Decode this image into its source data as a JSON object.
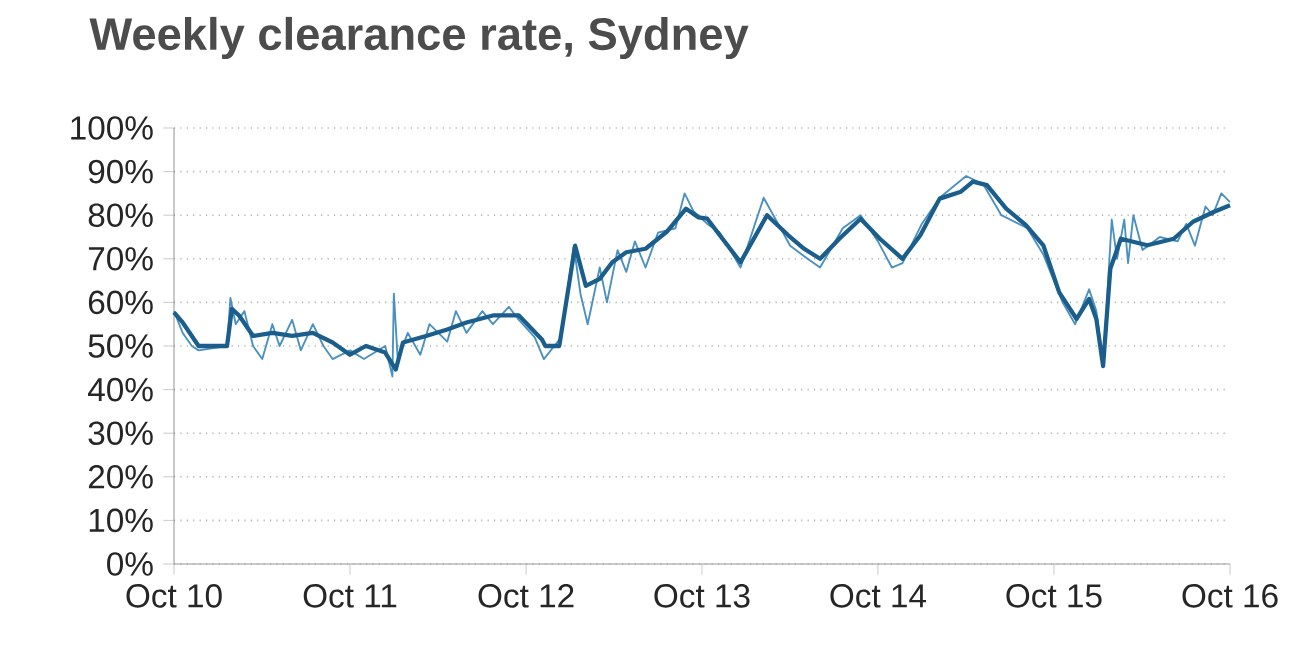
{
  "chart_data": {
    "type": "line",
    "title": "Weekly clearance rate, Sydney",
    "xlim": [
      "2010-10",
      "2016-10"
    ],
    "ylim": [
      0,
      100
    ],
    "xticks": [
      {
        "value": "2010-10",
        "label": "Oct 10"
      },
      {
        "value": "2011-10",
        "label": "Oct 11"
      },
      {
        "value": "2012-10",
        "label": "Oct 12"
      },
      {
        "value": "2013-10",
        "label": "Oct 13"
      },
      {
        "value": "2014-10",
        "label": "Oct 14"
      },
      {
        "value": "2015-10",
        "label": "Oct 15"
      },
      {
        "value": "2016-10",
        "label": "Oct 16"
      }
    ],
    "yticks": [
      {
        "value": 0,
        "label": "0%"
      },
      {
        "value": 10,
        "label": "10%"
      },
      {
        "value": 20,
        "label": "20%"
      },
      {
        "value": 30,
        "label": "30%"
      },
      {
        "value": 40,
        "label": "40%"
      },
      {
        "value": 50,
        "label": "50%"
      },
      {
        "value": 60,
        "label": "60%"
      },
      {
        "value": 70,
        "label": "70%"
      },
      {
        "value": 80,
        "label": "80%"
      },
      {
        "value": 90,
        "label": "90%"
      },
      {
        "value": 100,
        "label": "100%"
      }
    ],
    "grid": "y",
    "line_style": "solid",
    "series": [
      {
        "color": "#4a90c0",
        "x": [
          "2010-10-01",
          "2010-10-19",
          "2010-11-07",
          "2010-11-21",
          "2011-01-19",
          "2011-01-26",
          "2011-02-06",
          "2011-02-24",
          "2011-03-14",
          "2011-04-02",
          "2011-04-23",
          "2011-05-08",
          "2011-06-03",
          "2011-06-21",
          "2011-07-16",
          "2011-08-07",
          "2011-08-26",
          "2011-10-01",
          "2011-10-30",
          "2011-12-13",
          "2011-12-28",
          "2011-12-31",
          "2012-01-08",
          "2012-01-29",
          "2012-02-24",
          "2012-03-14",
          "2012-04-20",
          "2012-05-08",
          "2012-05-30",
          "2012-07-02",
          "2012-07-24",
          "2012-08-26",
          "2012-09-16",
          "2012-10-19",
          "2012-11-07",
          "2012-12-13",
          "2013-01-08",
          "2013-01-22",
          "2013-02-06",
          "2013-03-03",
          "2013-03-18",
          "2013-04-09",
          "2013-04-27",
          "2013-05-15",
          "2013-06-06",
          "2013-07-02",
          "2013-08-07",
          "2013-08-26",
          "2013-09-13",
          "2013-10-12",
          "2013-11-07",
          "2013-12-20",
          "2014-02-06",
          "2014-04-02",
          "2014-05-08",
          "2014-06-03",
          "2014-07-20",
          "2014-08-26",
          "2014-10-01",
          "2014-10-30",
          "2014-11-21",
          "2014-12-31",
          "2015-02-06",
          "2015-04-02",
          "2015-05-08",
          "2015-06-14",
          "2015-08-07",
          "2015-09-09",
          "2015-10-19",
          "2015-11-14",
          "2015-12-13",
          "2015-12-28",
          "2016-01-11",
          "2016-01-19",
          "2016-01-29",
          "2016-02-09",
          "2016-02-24",
          "2016-03-03",
          "2016-03-14",
          "2016-04-02",
          "2016-05-08",
          "2016-06-14",
          "2016-07-02",
          "2016-07-20",
          "2016-08-11",
          "2016-08-26",
          "2016-09-13",
          "2016-10-01"
        ],
        "values": [
          58,
          53,
          50,
          49,
          50,
          61,
          55,
          58,
          50,
          47,
          55,
          50,
          56,
          49,
          55,
          50,
          47,
          49,
          47,
          50,
          43,
          62,
          47,
          53,
          48,
          55,
          51,
          58,
          53,
          58,
          55,
          59,
          56,
          52,
          47,
          52,
          73,
          62,
          55,
          68,
          60,
          72,
          67,
          74,
          68,
          76,
          77,
          85,
          81,
          78,
          76,
          68,
          84,
          73,
          70,
          68,
          77,
          80,
          74,
          68,
          69,
          78,
          84,
          89,
          87,
          80,
          77,
          71,
          60,
          55,
          63,
          58,
          46,
          60,
          79,
          70,
          79,
          69,
          80,
          72,
          75,
          74,
          78,
          73,
          82,
          80,
          85,
          83
        ]
      },
      {
        "color": "#1b5e8c",
        "x": [
          "2010-10-01",
          "2010-10-19",
          "2010-11-21",
          "2011-01-19",
          "2011-01-29",
          "2011-02-13",
          "2011-03-14",
          "2011-04-23",
          "2011-06-03",
          "2011-07-16",
          "2011-08-26",
          "2011-10-01",
          "2011-11-03",
          "2011-12-13",
          "2012-01-04",
          "2012-01-19",
          "2012-03-07",
          "2012-04-20",
          "2012-05-30",
          "2012-07-24",
          "2012-09-16",
          "2012-11-03",
          "2012-11-10",
          "2012-12-09",
          "2013-01-11",
          "2013-02-02",
          "2013-03-03",
          "2013-03-29",
          "2013-04-27",
          "2013-06-06",
          "2013-07-20",
          "2013-08-29",
          "2013-09-24",
          "2013-10-12",
          "2013-11-07",
          "2013-12-20",
          "2014-02-13",
          "2014-03-29",
          "2014-05-01",
          "2014-06-03",
          "2014-07-13",
          "2014-08-26",
          "2014-10-05",
          "2014-11-21",
          "2014-12-28",
          "2015-02-06",
          "2015-03-22",
          "2015-04-16",
          "2015-05-15",
          "2015-06-24",
          "2015-08-04",
          "2015-09-09",
          "2015-10-12",
          "2015-11-17",
          "2015-12-13",
          "2015-12-28",
          "2016-01-11",
          "2016-01-26",
          "2016-02-17",
          "2016-04-12",
          "2016-06-06",
          "2016-07-16",
          "2016-08-29",
          "2016-10-01"
        ],
        "values": [
          57.7,
          55.4,
          50,
          50,
          58.5,
          57,
          52.3,
          53,
          52.3,
          53,
          50.8,
          48,
          50,
          48.5,
          44.6,
          50.8,
          52.3,
          53.8,
          55.4,
          57,
          57,
          51.5,
          50,
          50,
          73,
          63.8,
          65.4,
          69.2,
          71.5,
          72.3,
          76.2,
          81.5,
          79.5,
          79.2,
          75.4,
          69.2,
          80,
          75.4,
          72.3,
          70,
          74.6,
          79.2,
          74.6,
          70,
          75.4,
          83.8,
          85.4,
          87.7,
          86.9,
          81.5,
          77.7,
          73.1,
          62.3,
          56.2,
          60.8,
          56.2,
          45.4,
          67.7,
          74.6,
          73.1,
          74.6,
          78.5,
          80.8,
          82.3
        ]
      }
    ]
  }
}
